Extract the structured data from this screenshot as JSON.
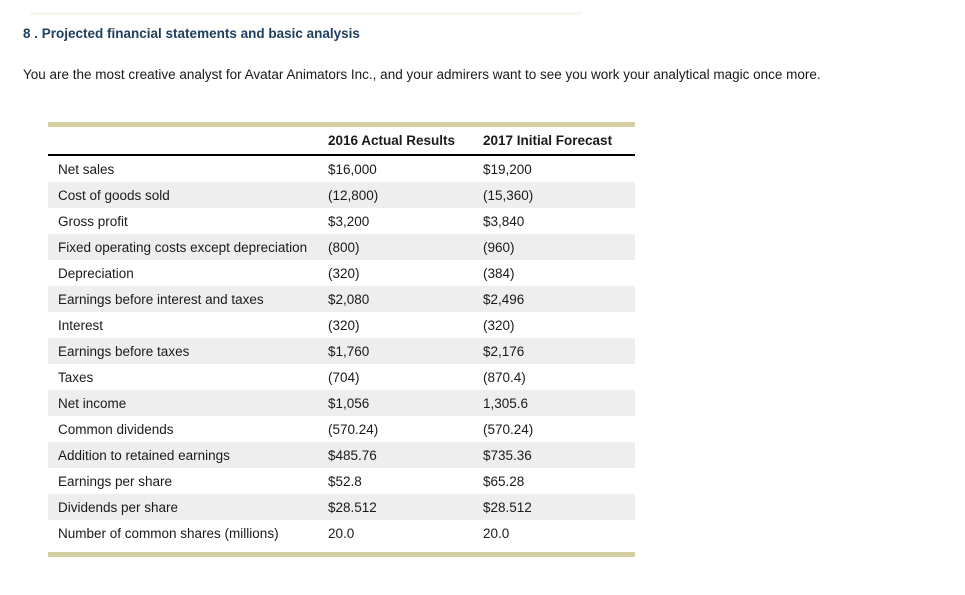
{
  "page": {
    "background_color": "#ffffff",
    "faint_divider_color": "#d6cfa3"
  },
  "heading": {
    "text": "8 . Projected financial statements and basic analysis",
    "color": "#1f3f60"
  },
  "intro": {
    "text": "You are the most creative analyst for Avatar Animators Inc., and your admirers want to see you work your analytical magic once more."
  },
  "table": {
    "accent_bar_color": "#d6cfa3",
    "stripe_color": "#eeeeef",
    "header_rule_color": "#000000",
    "columns": [
      "",
      "2016 Actual Results",
      "2017 Initial Forecast"
    ],
    "rows": [
      {
        "label": "Net sales",
        "y2016": "$16,000",
        "y2017": "$19,200"
      },
      {
        "label": "Cost of goods sold",
        "y2016": "(12,800)",
        "y2017": "(15,360)"
      },
      {
        "label": "Gross profit",
        "y2016": "$3,200",
        "y2017": "$3,840"
      },
      {
        "label": "Fixed operating costs except depreciation",
        "y2016": "(800)",
        "y2017": "(960)"
      },
      {
        "label": "Depreciation",
        "y2016": "(320)",
        "y2017": "(384)"
      },
      {
        "label": "Earnings before interest and taxes",
        "y2016": "$2,080",
        "y2017": "$2,496"
      },
      {
        "label": "Interest",
        "y2016": "(320)",
        "y2017": "(320)"
      },
      {
        "label": "Earnings before taxes",
        "y2016": "$1,760",
        "y2017": "$2,176"
      },
      {
        "label": "Taxes",
        "y2016": "(704)",
        "y2017": "(870.4)"
      },
      {
        "label": "Net income",
        "y2016": "$1,056",
        "y2017": "1,305.6"
      },
      {
        "label": "Common dividends",
        "y2016": "(570.24)",
        "y2017": "(570.24)"
      },
      {
        "label": "Addition to retained earnings",
        "y2016": "$485.76",
        "y2017": "$735.36"
      },
      {
        "label": "Earnings per share",
        "y2016": "$52.8",
        "y2017": "$65.28"
      },
      {
        "label": "Dividends per share",
        "y2016": "$28.512",
        "y2017": "$28.512"
      },
      {
        "label": "Number of common shares (millions)",
        "y2016": "20.0",
        "y2017": "20.0"
      }
    ]
  }
}
